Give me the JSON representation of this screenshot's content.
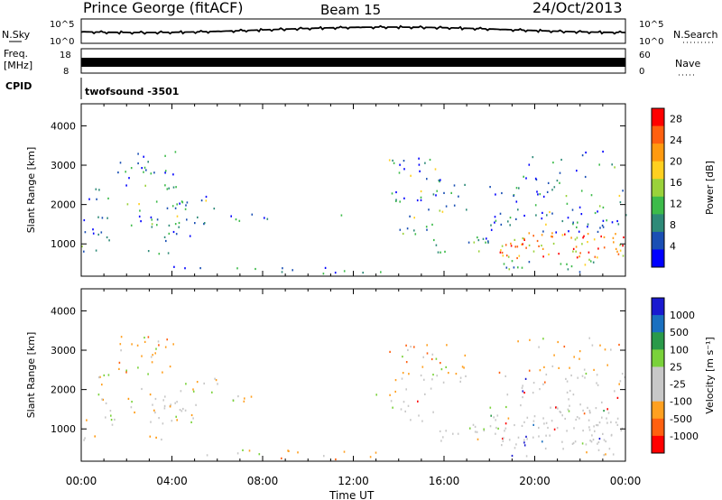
{
  "header": {
    "station": "Prince George (fitACF)",
    "beam": "Beam 15",
    "date": "24/Oct/2013"
  },
  "strips": {
    "nsky_label": "N.Sky",
    "nsky_ticks": [
      "10^5",
      "10^0"
    ],
    "nsearch_label": "N.Search",
    "nsearch_ticks": [
      "10^5",
      "10^0"
    ],
    "freq_label_1": "Freq.",
    "freq_label_2": "[MHz]",
    "freq_ticks": [
      "18",
      "8"
    ],
    "nave_label": "Nave",
    "nave_ticks": [
      "60",
      "0"
    ],
    "cpid_label": "CPID",
    "cpid_text": "twofsound -3501"
  },
  "colors": {
    "power_scale": [
      "#0000ff",
      "#1a4fb4",
      "#2e8a78",
      "#3dbb4a",
      "#9ad23a",
      "#ffd020",
      "#ff9a10",
      "#ff6010",
      "#ff0000"
    ],
    "velocity_scale": [
      "#1a1ad0",
      "#1a70c0",
      "#2a9a4a",
      "#7ad23a",
      "#c8c8c8",
      "#c8c8c8",
      "#ffa020",
      "#ff6010",
      "#ff0000"
    ]
  },
  "chart_data": [
    {
      "type": "heatmap",
      "panel": "power",
      "ylabel": "Slant Range [km]",
      "yticks": [
        "1000",
        "2000",
        "3000",
        "4000"
      ],
      "ylim": [
        180,
        4560
      ],
      "xlim": [
        0,
        24
      ],
      "colorbar_label": "Power [dB]",
      "colorbar_ticks": [
        "4",
        "8",
        "12",
        "16",
        "20",
        "24",
        "28"
      ],
      "colorbar_range": [
        0,
        30
      ]
    },
    {
      "type": "heatmap",
      "panel": "velocity",
      "ylabel": "Slant Range [km]",
      "yticks": [
        "1000",
        "2000",
        "3000",
        "4000"
      ],
      "ylim": [
        180,
        4560
      ],
      "xlim": [
        0,
        24
      ],
      "colorbar_label": "Velocity [m s⁻¹]",
      "colorbar_ticks": [
        "1000",
        "500",
        "100",
        "25",
        "-25",
        "-100",
        "-500",
        "-1000"
      ],
      "xticks": [
        "00:00",
        "04:00",
        "08:00",
        "12:00",
        "16:00",
        "20:00",
        "00:00"
      ],
      "xlabel": "Time UT"
    }
  ]
}
